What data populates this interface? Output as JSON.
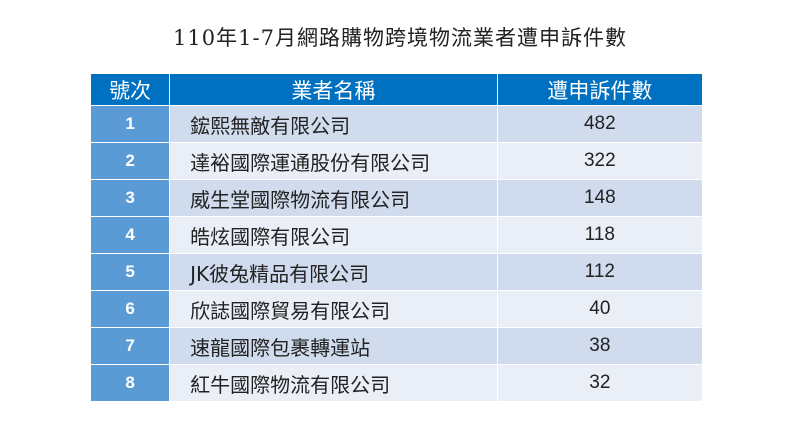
{
  "title": "110年1-7月網路購物跨境物流業者遭申訴件數",
  "colors": {
    "header_bg": "#0070c0",
    "number_col_bg": "#5b9bd5",
    "row_odd_bg": "#d0dcee",
    "row_even_bg": "#e9eef7"
  },
  "table": {
    "headers": [
      "號次",
      "業者名稱",
      "遭申訴件數"
    ],
    "rows": [
      {
        "no": "1",
        "name": "鋐熙無敵有限公司",
        "count": "482"
      },
      {
        "no": "2",
        "name": "達裕國際運通股份有限公司",
        "count": "322"
      },
      {
        "no": "3",
        "name": "威生堂國際物流有限公司",
        "count": "148"
      },
      {
        "no": "4",
        "name": "皓炫國際有限公司",
        "count": "118"
      },
      {
        "no": "5",
        "name": "JK彼兔精品有限公司",
        "count": "112"
      },
      {
        "no": "6",
        "name": "欣誌國際貿易有限公司",
        "count": "40"
      },
      {
        "no": "7",
        "name": "速龍國際包裹轉運站",
        "count": "38"
      },
      {
        "no": "8",
        "name": "紅牛國際物流有限公司",
        "count": "32"
      }
    ]
  }
}
